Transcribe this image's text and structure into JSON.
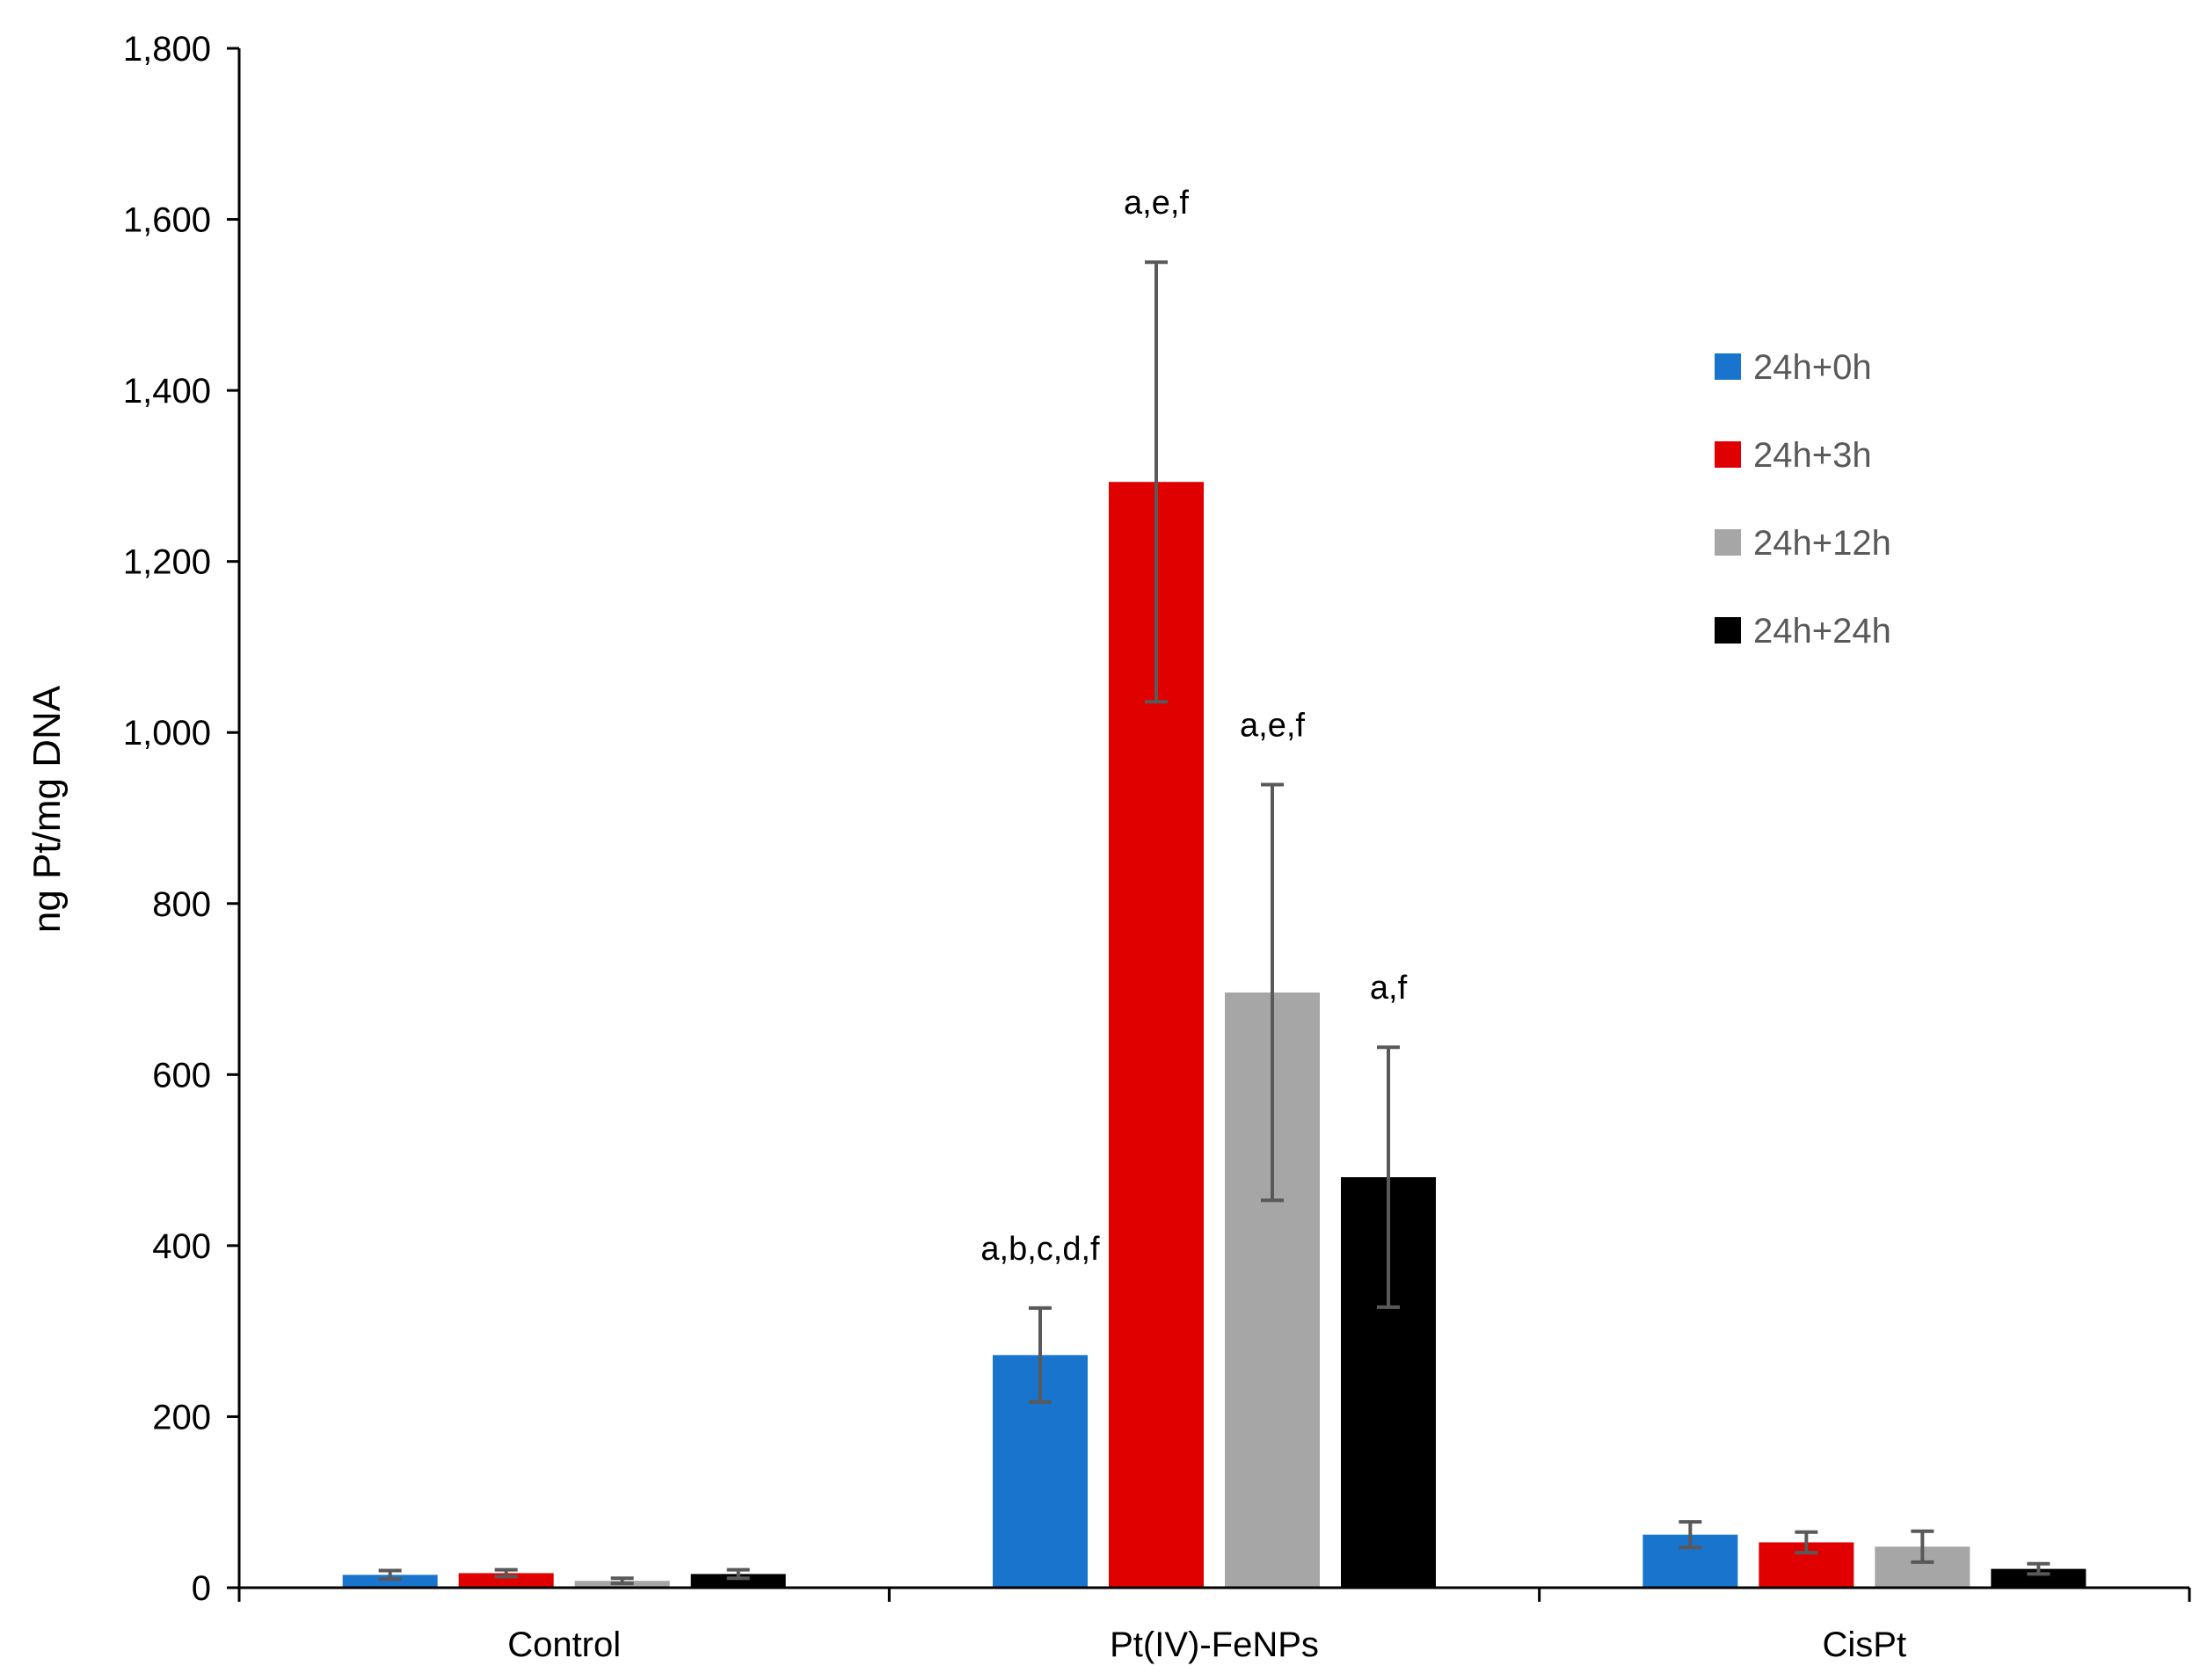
{
  "chart_data": {
    "type": "bar",
    "title": "",
    "xlabel": "",
    "ylabel": "ng Pt/mg DNA",
    "ylim": [
      0,
      1800
    ],
    "yticks": [
      0,
      200,
      400,
      600,
      800,
      1000,
      1200,
      1400,
      1600,
      1800
    ],
    "ytick_labels": [
      "0",
      "200",
      "400",
      "600",
      "800",
      "1,000",
      "1,200",
      "1,400",
      "1,600",
      "1,800"
    ],
    "categories": [
      "Control",
      "Pt(IV)-FeNPs",
      "CisPt"
    ],
    "series": [
      {
        "name": "24h+0h",
        "color": "#1874CD",
        "values": [
          15,
          272,
          62
        ],
        "errors": [
          5,
          55,
          15
        ]
      },
      {
        "name": "24h+3h",
        "color": "#E00000",
        "values": [
          17,
          1293,
          53
        ],
        "errors": [
          4,
          257,
          12
        ]
      },
      {
        "name": "24h+12h",
        "color": "#A6A6A6",
        "values": [
          8,
          696,
          48
        ],
        "errors": [
          3,
          243,
          18
        ]
      },
      {
        "name": "24h+24h",
        "color": "#000000",
        "values": [
          16,
          480,
          22
        ],
        "errors": [
          5,
          152,
          6
        ]
      }
    ],
    "annotations": [
      {
        "category": "Pt(IV)-FeNPs",
        "series": "24h+0h",
        "text": "a,b,c,d,f"
      },
      {
        "category": "Pt(IV)-FeNPs",
        "series": "24h+3h",
        "text": "a,e,f"
      },
      {
        "category": "Pt(IV)-FeNPs",
        "series": "24h+12h",
        "text": "a,e,f"
      },
      {
        "category": "Pt(IV)-FeNPs",
        "series": "24h+24h",
        "text": "a,f"
      }
    ],
    "legend_position": "right",
    "grid": false,
    "error_bar_color": "#595959"
  }
}
